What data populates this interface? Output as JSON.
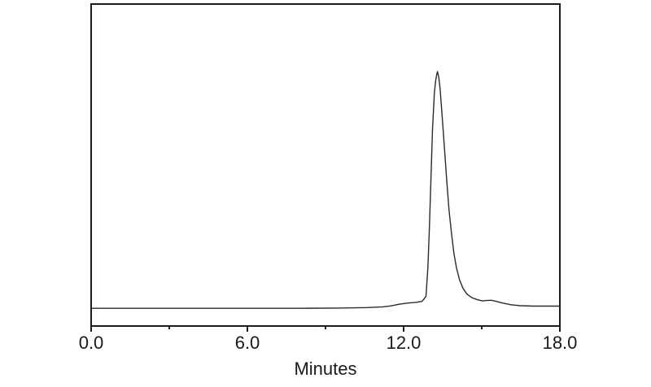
{
  "figure": {
    "background_color": "#ffffff",
    "frame_color": "#1a1a1a",
    "trace_color": "#2b2b2b",
    "tick_color": "#1a1a1a"
  },
  "chart_data": {
    "type": "line",
    "title": "",
    "xlabel": "Minutes",
    "ylabel": "",
    "xlim": [
      0,
      18
    ],
    "ylim": [
      -0.075,
      1.285
    ],
    "grid": false,
    "legend": false,
    "x_major_ticks": [
      0,
      6,
      12,
      18
    ],
    "x_major_tick_labels": [
      "0.0",
      "6.0",
      "12.0",
      "18.0"
    ],
    "x_minor_ticks": [
      3,
      9,
      15
    ],
    "y_ticks": [],
    "series": [
      {
        "name": "chromatogram-trace",
        "peak_apex_x": 13.3,
        "points": [
          [
            0.0,
            0.0
          ],
          [
            2.0,
            0.0
          ],
          [
            4.0,
            0.0
          ],
          [
            6.0,
            0.0
          ],
          [
            8.0,
            0.0
          ],
          [
            9.5,
            0.001
          ],
          [
            10.6,
            0.003
          ],
          [
            11.2,
            0.006
          ],
          [
            11.5,
            0.01
          ],
          [
            11.83,
            0.017
          ],
          [
            12.14,
            0.022
          ],
          [
            12.46,
            0.025
          ],
          [
            12.71,
            0.029
          ],
          [
            12.86,
            0.05
          ],
          [
            12.93,
            0.17
          ],
          [
            12.99,
            0.342
          ],
          [
            13.05,
            0.549
          ],
          [
            13.11,
            0.755
          ],
          [
            13.18,
            0.91
          ],
          [
            13.23,
            0.962
          ],
          [
            13.27,
            0.986
          ],
          [
            13.3,
            1.0
          ],
          [
            13.35,
            0.976
          ],
          [
            13.4,
            0.928
          ],
          [
            13.46,
            0.842
          ],
          [
            13.55,
            0.704
          ],
          [
            13.65,
            0.549
          ],
          [
            13.74,
            0.418
          ],
          [
            13.84,
            0.315
          ],
          [
            13.93,
            0.232
          ],
          [
            14.03,
            0.17
          ],
          [
            14.15,
            0.119
          ],
          [
            14.28,
            0.084
          ],
          [
            14.43,
            0.06
          ],
          [
            14.62,
            0.045
          ],
          [
            14.84,
            0.036
          ],
          [
            15.03,
            0.031
          ],
          [
            15.18,
            0.033
          ],
          [
            15.37,
            0.034
          ],
          [
            15.56,
            0.029
          ],
          [
            15.81,
            0.022
          ],
          [
            16.12,
            0.015
          ],
          [
            16.47,
            0.011
          ],
          [
            17.0,
            0.009
          ],
          [
            17.5,
            0.009
          ],
          [
            18.0,
            0.009
          ]
        ]
      }
    ]
  }
}
